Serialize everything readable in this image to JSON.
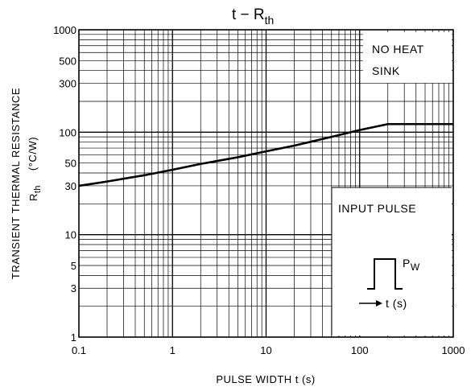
{
  "chart_data": {
    "type": "line",
    "title_main": "t − R",
    "title_sub": "th",
    "x_scale": "log",
    "y_scale": "log",
    "xlim": [
      0.1,
      1000
    ],
    "ylim": [
      1,
      1000
    ],
    "x_ticks": [
      "0.1",
      "1",
      "10",
      "100",
      "1000"
    ],
    "y_ticks": [
      "1000",
      "500",
      "300",
      "100",
      "50",
      "30",
      "10",
      "5",
      "3",
      "1"
    ],
    "xlabel": "PULSE WIDTH   t   (s)",
    "ylabel_line1": "TRANSIENT THERMAL RESISTANCE",
    "ylabel_line2_main": "R",
    "ylabel_line2_sub": "th",
    "ylabel_line3": "(°C/W)",
    "grid": true,
    "annotation_heat_sink_line1": "NO HEAT",
    "annotation_heat_sink_line2": "SINK",
    "annotation_input_pulse": "INPUT PULSE",
    "pulse_label_main": "P",
    "pulse_label_sub": "W",
    "pulse_axis_label": "t (s)",
    "series": [
      {
        "x": [
          0.1,
          0.2,
          0.5,
          1,
          2,
          5,
          10,
          20,
          50,
          100,
          200,
          500,
          1000
        ],
        "values": [
          30,
          33,
          38,
          43,
          49,
          57,
          65,
          74,
          90,
          105,
          120,
          120,
          120
        ]
      }
    ]
  }
}
